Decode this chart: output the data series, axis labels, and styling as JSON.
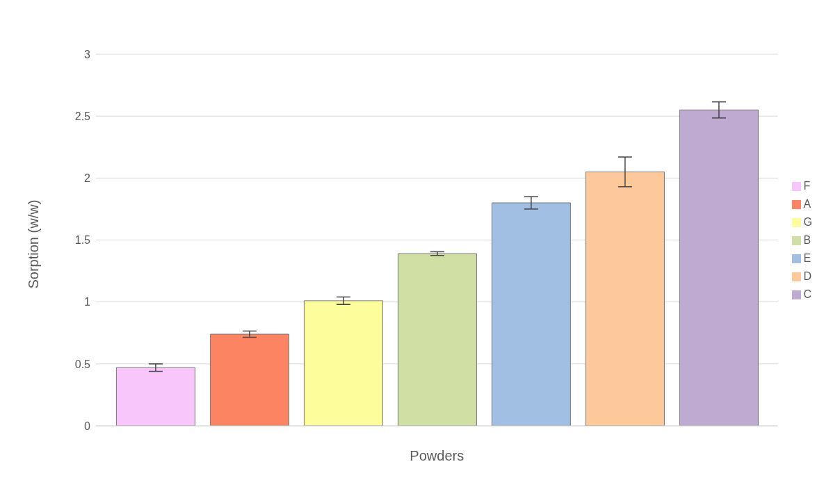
{
  "chart_data": {
    "type": "bar",
    "xlabel": "Powders",
    "ylabel": "Sorption (w/w)",
    "categories": [
      null
    ],
    "series": [
      {
        "name": "F",
        "color": "#f9c6fb",
        "values": [
          0.47
        ],
        "errors": [
          0.03
        ]
      },
      {
        "name": "A",
        "color": "#fd8462",
        "values": [
          0.74
        ],
        "errors": [
          0.025
        ]
      },
      {
        "name": "G",
        "color": "#fdfd9c",
        "values": [
          1.01
        ],
        "errors": [
          0.03
        ]
      },
      {
        "name": "B",
        "color": "#d0e0a5",
        "values": [
          1.39
        ],
        "errors": [
          0.015
        ]
      },
      {
        "name": "E",
        "color": "#a0bfe3",
        "values": [
          1.8
        ],
        "errors": [
          0.05
        ]
      },
      {
        "name": "D",
        "color": "#fdc99a",
        "values": [
          2.05
        ],
        "errors": [
          0.12
        ]
      },
      {
        "name": "C",
        "color": "#bfabd1",
        "values": [
          2.55
        ],
        "errors": [
          0.065
        ]
      }
    ],
    "ylim": [
      0,
      3
    ],
    "yticks": [
      0,
      0.5,
      1,
      1.5,
      2,
      2.5,
      3
    ],
    "grid": "y",
    "legend": "right"
  }
}
